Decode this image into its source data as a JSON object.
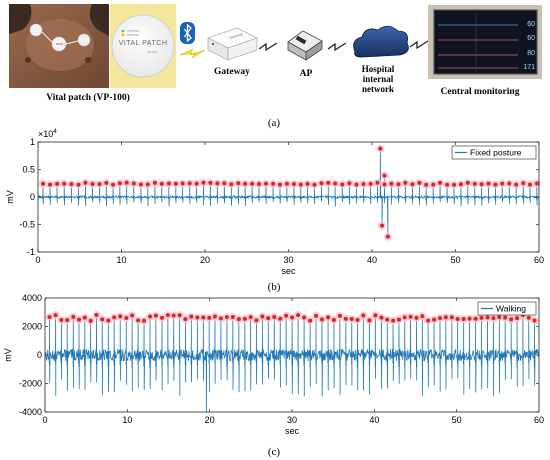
{
  "panel_a": {
    "device_label": "Vital patch (VP-100)",
    "patch_brand": "VITAL PATCH",
    "patch_model": "VP-100",
    "gateway_label": "Gateway",
    "gateway_device_text": "Gateway",
    "ap_label": "AP",
    "hospital_label_lines": [
      "Hospital",
      "internal",
      "network"
    ],
    "monitor_label": "Central monitoring",
    "monitor_values": [
      "60",
      "60",
      "80",
      "171"
    ],
    "caption": "(a)"
  },
  "chart_data": [
    {
      "type": "line",
      "panel": "(b)",
      "title": "",
      "xlabel": "sec",
      "ylabel": "mV",
      "y_multiplier_label": "×10",
      "y_multiplier_exponent": "4",
      "xlim": [
        0,
        60
      ],
      "ylim": [
        -10000,
        10000
      ],
      "xticks": [
        0,
        10,
        20,
        30,
        40,
        50,
        60
      ],
      "yticks": [
        -10000,
        -5000,
        0,
        5000,
        10000
      ],
      "ytick_labels": [
        "-1",
        "-0.5",
        "0",
        "0.5",
        "1"
      ],
      "grid": false,
      "legend_position": "top-right",
      "series": [
        {
          "name": "Fixed posture",
          "color": "#1f77b4",
          "baseline": 0,
          "noise_amplitude": 500,
          "r_peak_amplitude": 2400,
          "r_peak_interval_sec": 0.833,
          "first_peak_sec": 0.6,
          "artifact_window_sec": [
            40.8,
            42.4
          ],
          "artifact_extremes": [
            {
              "x": 41.0,
              "y": 8800
            },
            {
              "x": 41.2,
              "y": -5200
            },
            {
              "x": 41.5,
              "y": 3900
            },
            {
              "x": 41.9,
              "y": -7200
            }
          ]
        }
      ],
      "marker_color": "#d62728",
      "marker_halo_color": "#f7c6cc"
    },
    {
      "type": "line",
      "panel": "(c)",
      "title": "",
      "xlabel": "sec",
      "ylabel": "mV",
      "xlim": [
        0,
        60
      ],
      "ylim": [
        -4000,
        4000
      ],
      "xticks": [
        0,
        10,
        20,
        30,
        40,
        50,
        60
      ],
      "yticks": [
        -4000,
        -2000,
        0,
        2000,
        4000
      ],
      "ytick_labels": [
        "-4000",
        "-2000",
        "0",
        "2000",
        "4000"
      ],
      "grid": false,
      "legend_position": "top-right",
      "series": [
        {
          "name": "Walking",
          "color": "#1f77b4",
          "baseline": 0,
          "noise_amplitude": 900,
          "r_peak_amplitude": 2600,
          "r_peak_interval_sec": 0.72,
          "first_peak_sec": 0.55,
          "s_wave_depth": -2900,
          "notable_extreme": {
            "x": 19.6,
            "y": -4000
          }
        }
      ],
      "marker_color": "#d62728",
      "marker_halo_color": "#f7c6cc"
    }
  ],
  "captions": {
    "b": "(b)",
    "c": "(c)"
  }
}
